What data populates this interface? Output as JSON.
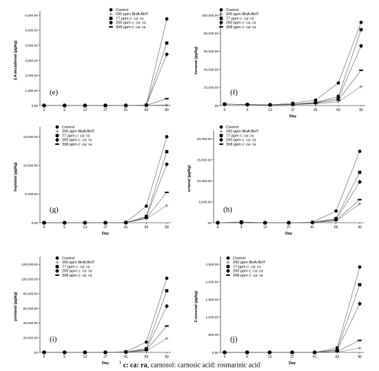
{
  "footnote": {
    "sup": "1",
    "bold": "c: ca: ra",
    "text": ", carnosol: carnosic acid: rosmarinic acid"
  },
  "series_names": [
    "Control",
    "200 ppm BHA:BHT",
    "77 ppm c: ca: ra",
    "200 ppm c: ca: ra",
    "308 ppm c: ca: ra"
  ],
  "chart_data": [
    {
      "type": "line",
      "panel": "(e)",
      "ylabel": "2,4-decadienal (µg/kg)",
      "xlabel": "",
      "categories": [
        "0",
        "5",
        "13",
        "27",
        "41",
        "69",
        "90"
      ],
      "yticks": [
        "0.00",
        "1,000.00",
        "2,000.00",
        "3,000.00",
        "4,000.00",
        "5,000.00",
        "6,000.00"
      ],
      "ylim": [
        0,
        6000
      ],
      "series": [
        {
          "name": "Control",
          "values": [
            0,
            0,
            0,
            0,
            0,
            30,
            5750
          ]
        },
        {
          "name": "200 ppm BHA:BHT",
          "values": [
            0,
            0,
            0,
            0,
            0,
            10,
            40
          ]
        },
        {
          "name": "77 ppm c: ca: ra",
          "values": [
            0,
            0,
            0,
            0,
            0,
            25,
            4150
          ]
        },
        {
          "name": "200 ppm c: ca: ra",
          "values": [
            0,
            0,
            0,
            0,
            0,
            20,
            3400
          ]
        },
        {
          "name": "308 ppm c: ca: ra",
          "values": [
            0,
            0,
            0,
            0,
            0,
            15,
            450
          ]
        }
      ],
      "legend": "top-right",
      "grid": false
    },
    {
      "type": "line",
      "panel": "(f)",
      "ylabel": "hexanal (µg/kg)",
      "xlabel": "Day",
      "categories": [
        "0",
        "5",
        "13",
        "27",
        "41",
        "69",
        "90"
      ],
      "yticks": [
        ".00",
        "20,000.00",
        "40,000.00",
        "60,000.00",
        "80,000.00",
        "100,000.00"
      ],
      "ylim": [
        0,
        100000
      ],
      "series": [
        {
          "name": "Control",
          "values": [
            1500,
            1200,
            800,
            2500,
            6000,
            25000,
            92000
          ]
        },
        {
          "name": "200 ppm BHA:BHT",
          "values": [
            1500,
            1000,
            600,
            1000,
            2000,
            4000,
            21000
          ]
        },
        {
          "name": "77 ppm c: ca: ra",
          "values": [
            1500,
            1100,
            700,
            1500,
            3500,
            10000,
            84000
          ]
        },
        {
          "name": "200 ppm c: ca: ra",
          "values": [
            1500,
            1000,
            700,
            1200,
            3000,
            8000,
            66000
          ]
        },
        {
          "name": "308 ppm c: ca: ra",
          "values": [
            1500,
            1000,
            600,
            1000,
            2500,
            6000,
            39000
          ]
        }
      ],
      "legend": "top-right",
      "grid": false
    },
    {
      "type": "line",
      "panel": "(g)",
      "ylabel": "heptanal (µg/kg)",
      "xlabel": "Day",
      "categories": [
        "0",
        "5",
        "13",
        "27",
        "41",
        "69",
        "90"
      ],
      "yticks": [
        "0.00",
        "5,000.00",
        "10,000.00",
        "15,000.00"
      ],
      "ylim": [
        0,
        16000
      ],
      "series": [
        {
          "name": "Control",
          "values": [
            0,
            0,
            0,
            0,
            50,
            2900,
            15000
          ]
        },
        {
          "name": "200 ppm BHA:BHT",
          "values": [
            0,
            0,
            0,
            0,
            20,
            700,
            3000
          ]
        },
        {
          "name": "77 ppm c: ca: ra",
          "values": [
            0,
            0,
            0,
            0,
            30,
            1100,
            12400
          ]
        },
        {
          "name": "200 ppm c: ca: ra",
          "values": [
            0,
            0,
            0,
            0,
            30,
            1000,
            10200
          ]
        },
        {
          "name": "308 ppm c: ca: ra",
          "values": [
            0,
            0,
            0,
            0,
            20,
            800,
            5300
          ]
        }
      ],
      "legend": "top-left",
      "grid": false
    },
    {
      "type": "line",
      "panel": "(h)",
      "ylabel": "octanal (µg/kg)",
      "xlabel": "Day",
      "categories": [
        "0",
        "5",
        "13",
        "27",
        "41",
        "69",
        "90"
      ],
      "yticks": [
        ".00",
        "5,000.00",
        "10,000.00",
        "15,000.00",
        "20,000.00"
      ],
      "ylim": [
        0,
        21000
      ],
      "series": [
        {
          "name": "Control",
          "values": [
            0,
            0,
            0,
            0,
            100,
            2800,
            17000
          ]
        },
        {
          "name": "200 ppm BHA:BHT",
          "values": [
            0,
            0,
            0,
            0,
            50,
            400,
            4500
          ]
        },
        {
          "name": "77 ppm c: ca: ra",
          "values": [
            0,
            200,
            0,
            0,
            80,
            1000,
            12000
          ]
        },
        {
          "name": "200 ppm c: ca: ra",
          "values": [
            0,
            0,
            0,
            0,
            60,
            800,
            9700
          ]
        },
        {
          "name": "308 ppm c: ca: ra",
          "values": [
            0,
            0,
            0,
            0,
            40,
            600,
            5500
          ]
        }
      ],
      "legend": "top-left",
      "grid": false
    },
    {
      "type": "line",
      "panel": "(i)",
      "ylabel": "pentanal (µg/kg)",
      "xlabel": "Day",
      "categories": [
        "0",
        "5",
        "13",
        "27",
        "41",
        "69",
        "90"
      ],
      "yticks": [
        ".00",
        "20,000.00",
        "40,000.00",
        "60,000.00",
        "80,000.00",
        "100,000.00",
        "120,000.00"
      ],
      "ylim": [
        0,
        125000
      ],
      "series": [
        {
          "name": "Control",
          "values": [
            0,
            0,
            0,
            0,
            800,
            14000,
            101000
          ]
        },
        {
          "name": "200 ppm BHA:BHT",
          "values": [
            0,
            0,
            0,
            0,
            300,
            2000,
            19000
          ]
        },
        {
          "name": "77 ppm c: ca: ra",
          "values": [
            0,
            0,
            0,
            0,
            500,
            5000,
            84000
          ]
        },
        {
          "name": "200 ppm c: ca: ra",
          "values": [
            0,
            0,
            0,
            0,
            400,
            4000,
            63000
          ]
        },
        {
          "name": "308 ppm c: ca: ra",
          "values": [
            0,
            0,
            0,
            0,
            300,
            3000,
            36000
          ]
        }
      ],
      "legend": "top-left",
      "grid": false
    },
    {
      "type": "line",
      "panel": "(j)",
      "ylabel": "2-nonenal (µg/kg)",
      "xlabel": "Day",
      "categories": [
        "0",
        "5",
        "13",
        "27",
        "41",
        "69",
        "90"
      ],
      "yticks": [
        "0.00",
        "500.00",
        "1,000.00",
        "1,500.00",
        "2,000.00",
        "2,500.00"
      ],
      "ylim": [
        0,
        2600
      ],
      "series": [
        {
          "name": "Control",
          "values": [
            0,
            0,
            0,
            0,
            0,
            130,
            2420
          ]
        },
        {
          "name": "200 ppm BHA:BHT",
          "values": [
            0,
            0,
            0,
            0,
            0,
            10,
            120
          ]
        },
        {
          "name": "77 ppm c: ca: ra",
          "values": [
            0,
            0,
            0,
            0,
            0,
            80,
            1920
          ]
        },
        {
          "name": "200 ppm c: ca: ra",
          "values": [
            0,
            0,
            0,
            0,
            0,
            60,
            1380
          ]
        },
        {
          "name": "308 ppm c: ca: ra",
          "values": [
            0,
            0,
            0,
            0,
            0,
            30,
            340
          ]
        }
      ],
      "legend": "top-left",
      "grid": false
    }
  ]
}
